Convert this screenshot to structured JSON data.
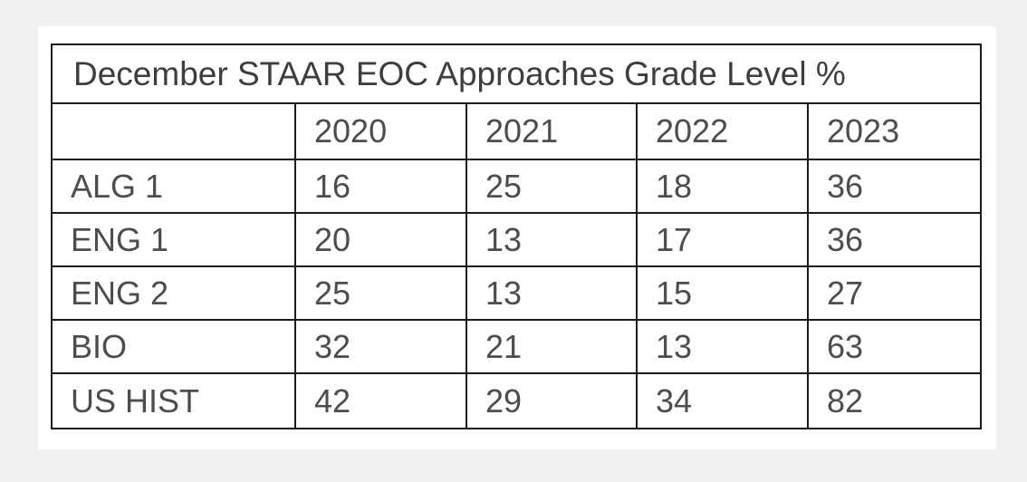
{
  "chart_data": {
    "type": "table",
    "title": "December STAAR EOC Approaches Grade Level %",
    "corner_label": "",
    "columns": [
      "2020",
      "2021",
      "2022",
      "2023"
    ],
    "rows": [
      {
        "label": "ALG 1",
        "values": [
          "16",
          "25",
          "18",
          "36"
        ]
      },
      {
        "label": "ENG 1",
        "values": [
          "20",
          "13",
          "17",
          "36"
        ]
      },
      {
        "label": "ENG 2",
        "values": [
          "25",
          "13",
          "15",
          "27"
        ]
      },
      {
        "label": "BIO",
        "values": [
          "32",
          "21",
          "13",
          "63"
        ]
      },
      {
        "label": "US HIST",
        "values": [
          "42",
          "29",
          "34",
          "82"
        ]
      }
    ]
  },
  "colors": {
    "page_background": "#f1f1f1",
    "card_background": "#ffffff",
    "border": "#1a1a1a",
    "text": "#4d4d4d"
  }
}
